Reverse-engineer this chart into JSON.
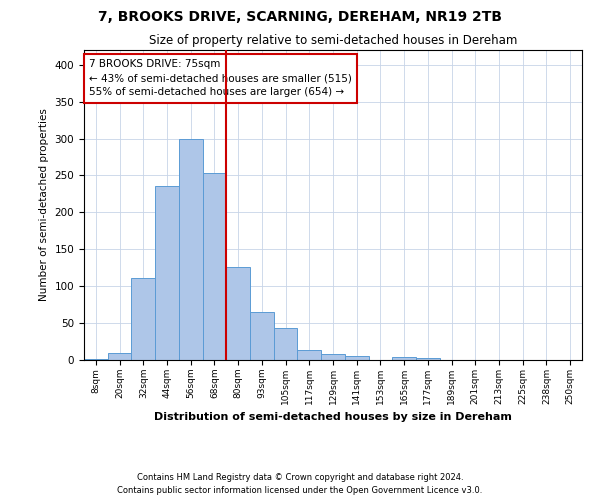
{
  "title": "7, BROOKS DRIVE, SCARNING, DEREHAM, NR19 2TB",
  "subtitle": "Size of property relative to semi-detached houses in Dereham",
  "xlabel": "Distribution of semi-detached houses by size in Dereham",
  "ylabel": "Number of semi-detached properties",
  "bar_labels": [
    "8sqm",
    "20sqm",
    "32sqm",
    "44sqm",
    "56sqm",
    "68sqm",
    "80sqm",
    "93sqm",
    "105sqm",
    "117sqm",
    "129sqm",
    "141sqm",
    "153sqm",
    "165sqm",
    "177sqm",
    "189sqm",
    "201sqm",
    "213sqm",
    "225sqm",
    "238sqm",
    "250sqm"
  ],
  "bar_values": [
    2,
    10,
    111,
    236,
    300,
    253,
    126,
    65,
    44,
    13,
    8,
    6,
    0,
    4,
    3,
    0,
    0,
    0,
    0,
    0,
    0
  ],
  "bar_color": "#aec6e8",
  "bar_edge_color": "#5b9bd5",
  "vline_color": "#cc0000",
  "vline_index": 6,
  "ylim": [
    0,
    420
  ],
  "yticks": [
    0,
    50,
    100,
    150,
    200,
    250,
    300,
    350,
    400
  ],
  "annotation_text": "7 BROOKS DRIVE: 75sqm\n← 43% of semi-detached houses are smaller (515)\n55% of semi-detached houses are larger (654) →",
  "annotation_box_edgecolor": "#cc0000",
  "footer1": "Contains HM Land Registry data © Crown copyright and database right 2024.",
  "footer2": "Contains public sector information licensed under the Open Government Licence v3.0.",
  "background_color": "#ffffff",
  "grid_color": "#c8d4e8"
}
